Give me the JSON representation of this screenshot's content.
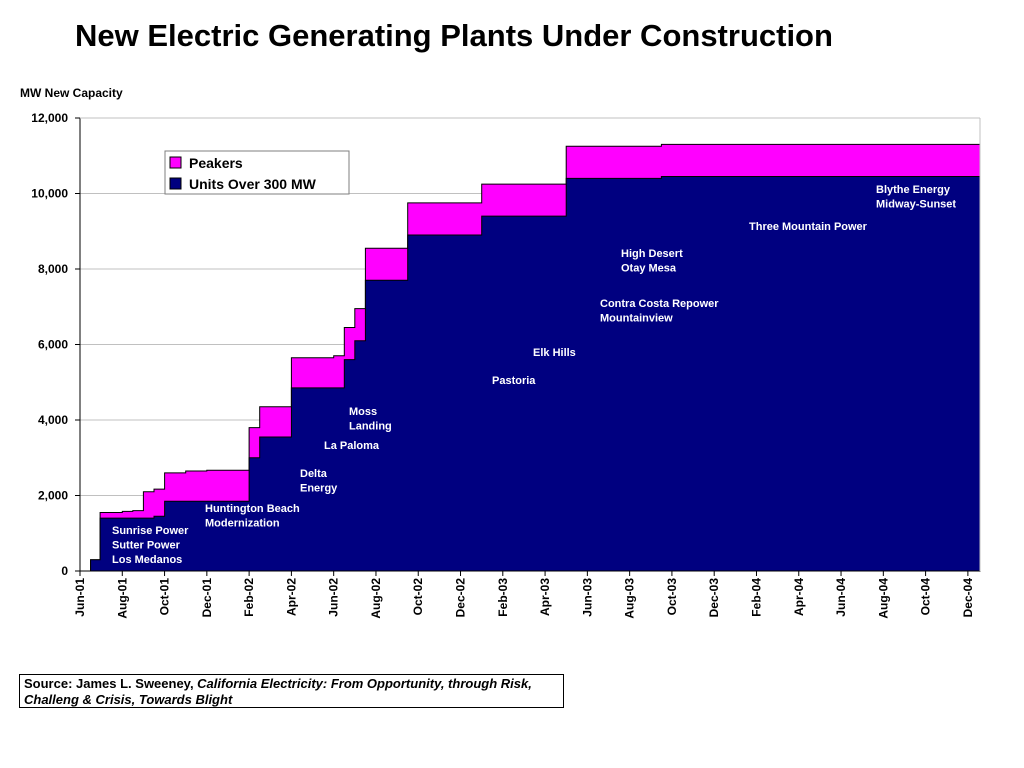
{
  "title": "New Electric Generating Plants Under Construction",
  "colors": {
    "peakers": "#FF00FF",
    "units_over_300": "#000080",
    "grid": "#C0C0C0"
  },
  "chart_data": {
    "type": "area",
    "stacked": true,
    "step": true,
    "ylabel": "MW New Capacity",
    "xlabel": "",
    "ylim": [
      0,
      12000
    ],
    "yticks": [
      "0",
      "2,000",
      "4,000",
      "6,000",
      "8,000",
      "10,000",
      "12,000"
    ],
    "ytick_values": [
      0,
      2000,
      4000,
      6000,
      8000,
      10000,
      12000
    ],
    "xticks": [
      "Jun-01",
      "Aug-01",
      "Oct-01",
      "Dec-01",
      "Feb-02",
      "Apr-02",
      "Jun-02",
      "Aug-02",
      "Oct-02",
      "Dec-02",
      "Feb-03",
      "Apr-03",
      "Jun-03",
      "Aug-03",
      "Oct-03",
      "Dec-03",
      "Feb-04",
      "Apr-04",
      "Jun-04",
      "Aug-04",
      "Oct-04",
      "Dec-04"
    ],
    "legend": {
      "position": "top-left",
      "entries": [
        "Peakers",
        "Units Over 300 MW"
      ]
    },
    "grid": true,
    "x_months": [
      0.4,
      0.5,
      0.6,
      0.95,
      1.5,
      2.0,
      2.5,
      3.0,
      3.5,
      4.0,
      5.0,
      6.0,
      6.5,
      7.5,
      8.0,
      8.5,
      10.0,
      11.0,
      12.0,
      12.5,
      13.0,
      13.5,
      15.5,
      16.5,
      19.0,
      20.0,
      23.0,
      24.5,
      26.0,
      27.5,
      28.5
    ],
    "series": [
      {
        "name": "Units Over 300 MW",
        "values": [
          0,
          300,
          300,
          1400,
          1400,
          1400,
          1400,
          1400,
          1450,
          1850,
          1850,
          1850,
          1850,
          1850,
          3000,
          3550,
          4850,
          4850,
          4850,
          5600,
          6100,
          7700,
          8900,
          8900,
          9400,
          9400,
          10400,
          10400,
          10400,
          10450,
          10450
        ]
      },
      {
        "name": "Peakers",
        "values": [
          0,
          0,
          0,
          150,
          150,
          180,
          200,
          700,
          720,
          750,
          800,
          820,
          820,
          820,
          800,
          800,
          800,
          800,
          850,
          850,
          850,
          850,
          850,
          850,
          850,
          850,
          850,
          850,
          850,
          850,
          850
        ]
      }
    ],
    "annotations": [
      {
        "lines": [
          "Sunrise Power",
          "Sutter Power",
          "Los Medanos"
        ]
      },
      {
        "lines": [
          "Huntington Beach",
          "Modernization"
        ]
      },
      {
        "lines": [
          "Delta",
          "Energy"
        ]
      },
      {
        "lines": [
          "La Paloma"
        ]
      },
      {
        "lines": [
          "Moss",
          "Landing"
        ]
      },
      {
        "lines": [
          "Pastoria"
        ]
      },
      {
        "lines": [
          "Elk Hills"
        ]
      },
      {
        "lines": [
          "Contra Costa Repower",
          "Mountainview"
        ]
      },
      {
        "lines": [
          "High Desert",
          "Otay Mesa"
        ]
      },
      {
        "lines": [
          "Three Mountain Power"
        ]
      },
      {
        "lines": [
          "Blythe Energy",
          "Midway-Sunset"
        ]
      }
    ]
  },
  "source": {
    "prefix": "Source:  James L. Sweeney, ",
    "italic": "California Electricity:  From Opportunity, through Risk, Challeng & Crisis, Towards Blight"
  }
}
